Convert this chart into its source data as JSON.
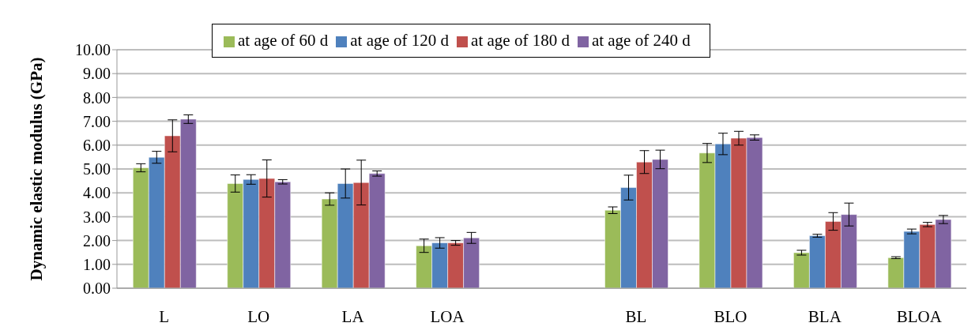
{
  "chart_data": {
    "type": "bar",
    "ylabel": "Dynamic elastic modulus (GPa)",
    "categories": [
      "L",
      "LO",
      "LA",
      "LOA",
      null,
      "BL",
      "BLO",
      "BLA",
      "BLOA"
    ],
    "series": [
      {
        "name": "at age of 60 d",
        "color": "#9bbb59",
        "values": [
          5.05,
          4.39,
          3.74,
          1.78,
          null,
          3.27,
          5.67,
          1.49,
          1.28
        ],
        "errors": [
          0.17,
          0.36,
          0.26,
          0.28,
          null,
          0.14,
          0.4,
          0.1,
          0.04
        ]
      },
      {
        "name": "at age of 120 d",
        "color": "#4f81bd",
        "values": [
          5.49,
          4.56,
          4.39,
          1.9,
          null,
          4.22,
          6.05,
          2.2,
          2.38
        ],
        "errors": [
          0.25,
          0.2,
          0.61,
          0.22,
          null,
          0.52,
          0.45,
          0.06,
          0.1
        ]
      },
      {
        "name": "at age of 180 d",
        "color": "#c0504d",
        "values": [
          6.39,
          4.6,
          4.43,
          1.9,
          null,
          5.29,
          6.29,
          2.8,
          2.67
        ],
        "errors": [
          0.67,
          0.78,
          0.94,
          0.1,
          null,
          0.48,
          0.29,
          0.37,
          0.09
        ]
      },
      {
        "name": "at age of 240 d",
        "color": "#8064a2",
        "values": [
          7.09,
          4.46,
          4.81,
          2.11,
          null,
          5.4,
          6.32,
          3.09,
          2.88
        ],
        "errors": [
          0.18,
          0.09,
          0.11,
          0.23,
          null,
          0.39,
          0.11,
          0.48,
          0.17
        ]
      }
    ],
    "ylim": [
      0,
      10
    ],
    "yticks": [
      {
        "value": 0,
        "label": "0.00"
      },
      {
        "value": 1,
        "label": "1.00"
      },
      {
        "value": 2,
        "label": "2.00"
      },
      {
        "value": 3,
        "label": "3.00"
      },
      {
        "value": 4,
        "label": "4.00"
      },
      {
        "value": 5,
        "label": "5.00"
      },
      {
        "value": 6,
        "label": "6.00"
      },
      {
        "value": 7,
        "label": "7.00"
      },
      {
        "value": 8,
        "label": "8.00"
      },
      {
        "value": 9,
        "label": "9.00"
      },
      {
        "value": 10,
        "label": "10.00"
      }
    ],
    "grid": "y",
    "legend": "top"
  }
}
